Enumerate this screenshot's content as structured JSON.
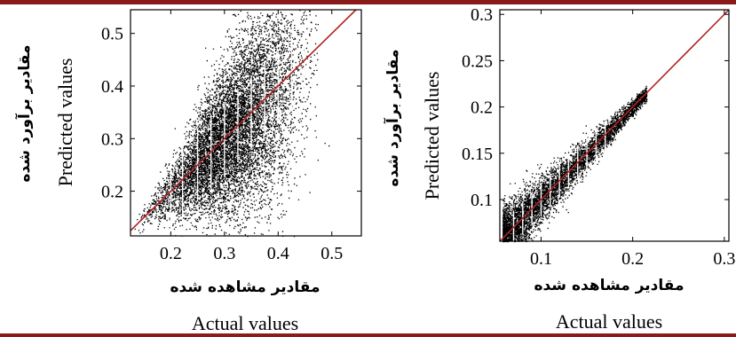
{
  "colors": {
    "frame_top": "#8b1a1a",
    "frame_bottom": "#8b1a1a",
    "points": "#000000",
    "fit_line": "#b22222"
  },
  "chart_data": [
    {
      "type": "scatter",
      "xlabel": "Actual values",
      "xlabel_fa": "مقادیر مشاهده شده",
      "ylabel": "Predicted values",
      "ylabel_fa": "مقادیر برآورد شده",
      "xlim": [
        0.125,
        0.555
      ],
      "ylim": [
        0.115,
        0.545
      ],
      "xticks": [
        "0.2",
        "0.3",
        "0.4",
        "0.5"
      ],
      "yticks": [
        "0.2",
        "0.3",
        "0.4",
        "0.5"
      ],
      "xtick_values": [
        0.2,
        0.3,
        0.4,
        0.5
      ],
      "ytick_values": [
        0.2,
        0.3,
        0.4,
        0.5
      ],
      "grid": false,
      "reference_line": "y = x",
      "point_cloud": {
        "x_range": [
          0.125,
          0.5
        ],
        "center_line": "y = x",
        "spread_note": "dense cloud concentrated around 0.25-0.45"
      },
      "white_bands_x": [
        0.2,
        0.222,
        0.25,
        0.275,
        0.3,
        0.325,
        0.35,
        0.375,
        0.4,
        0.425,
        0.45
      ]
    },
    {
      "type": "scatter",
      "xlabel": "Actual values",
      "xlabel_fa": "مقادیر مشاهده شده",
      "ylabel": "Predicted values",
      "ylabel_fa": "مقادیر برآورد شده",
      "xlim": [
        0.055,
        0.305
      ],
      "ylim": [
        0.055,
        0.305
      ],
      "xticks": [
        "0.1",
        "0.2",
        "0.3"
      ],
      "yticks": [
        "0.1",
        "0.15",
        "0.2",
        "0.25",
        "0.3"
      ],
      "xtick_values": [
        0.1,
        0.2,
        0.3
      ],
      "ytick_values": [
        0.1,
        0.15,
        0.2,
        0.25,
        0.3
      ],
      "grid": false,
      "reference_line": "y = x",
      "point_cloud": {
        "x_range": [
          0.058,
          0.215
        ],
        "center_line": "y = x",
        "spread_note": "tight band along identity line, denser at low values"
      },
      "white_bands_x": [
        0.07,
        0.08,
        0.09,
        0.1,
        0.11,
        0.12,
        0.13,
        0.14,
        0.15,
        0.16,
        0.17
      ]
    }
  ]
}
